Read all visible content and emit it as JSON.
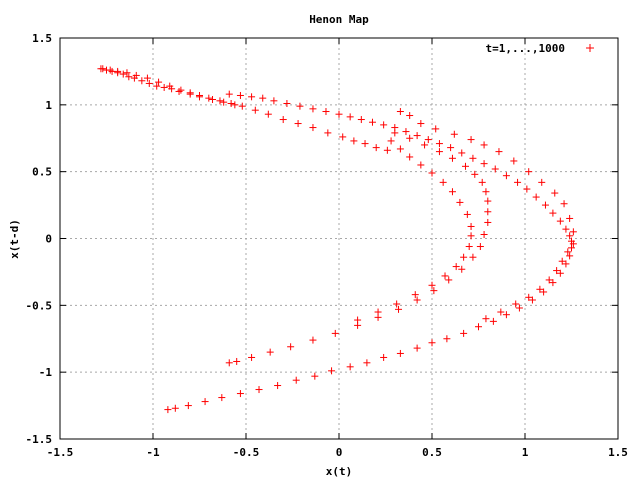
{
  "chart_data": {
    "type": "scatter",
    "title": "Henon Map",
    "xlabel": "x(t)",
    "ylabel": "x(t-d)",
    "xlim": [
      -1.5,
      1.5
    ],
    "ylim": [
      -1.5,
      1.5
    ],
    "xticks": [
      "-1.5",
      "-1",
      "-0.5",
      "0",
      "0.5",
      "1",
      "1.5"
    ],
    "yticks": [
      "-1.5",
      "-1",
      "-0.5",
      "0",
      "0.5",
      "1",
      "1.5"
    ],
    "grid": true,
    "legend_position": "top-right",
    "series": [
      {
        "name": "t=1,...,1000",
        "marker": "+",
        "color": "#ff0000",
        "points": [
          [
            -1.28,
            1.27
          ],
          [
            -1.25,
            1.26
          ],
          [
            -1.22,
            1.25
          ],
          [
            -1.19,
            1.24
          ],
          [
            -1.16,
            1.23
          ],
          [
            -1.13,
            1.21
          ],
          [
            -1.1,
            1.2
          ],
          [
            -1.06,
            1.18
          ],
          [
            -1.02,
            1.16
          ],
          [
            -0.98,
            1.14
          ],
          [
            -0.94,
            1.13
          ],
          [
            -0.9,
            1.12
          ],
          [
            -0.86,
            1.1
          ],
          [
            -0.8,
            1.08
          ],
          [
            -0.75,
            1.06
          ],
          [
            -0.7,
            1.05
          ],
          [
            -0.64,
            1.03
          ],
          [
            -0.58,
            1.01
          ],
          [
            -0.52,
            0.99
          ],
          [
            -0.45,
            0.96
          ],
          [
            -0.38,
            0.93
          ],
          [
            -0.3,
            0.89
          ],
          [
            -0.22,
            0.86
          ],
          [
            -0.14,
            0.83
          ],
          [
            -0.06,
            0.79
          ],
          [
            0.02,
            0.76
          ],
          [
            0.08,
            0.73
          ],
          [
            0.14,
            0.71
          ],
          [
            0.2,
            0.68
          ],
          [
            0.26,
            0.66
          ],
          [
            -1.27,
            1.27
          ],
          [
            -1.23,
            1.26
          ],
          [
            -1.19,
            1.25
          ],
          [
            -1.14,
            1.24
          ],
          [
            -1.09,
            1.22
          ],
          [
            -1.03,
            1.2
          ],
          [
            -0.97,
            1.17
          ],
          [
            -0.91,
            1.14
          ],
          [
            -0.85,
            1.11
          ],
          [
            -0.8,
            1.09
          ],
          [
            -0.75,
            1.07
          ],
          [
            -0.68,
            1.04
          ],
          [
            -0.62,
            1.02
          ],
          [
            -0.56,
            1.0
          ],
          [
            -0.59,
            1.08
          ],
          [
            -0.53,
            1.07
          ],
          [
            -0.47,
            1.06
          ],
          [
            -0.41,
            1.05
          ],
          [
            -0.35,
            1.03
          ],
          [
            -0.28,
            1.01
          ],
          [
            -0.21,
            0.99
          ],
          [
            -0.14,
            0.97
          ],
          [
            -0.07,
            0.95
          ],
          [
            0.0,
            0.93
          ],
          [
            0.06,
            0.91
          ],
          [
            0.12,
            0.89
          ],
          [
            0.18,
            0.87
          ],
          [
            0.24,
            0.85
          ],
          [
            0.3,
            0.83
          ],
          [
            0.36,
            0.8
          ],
          [
            0.42,
            0.77
          ],
          [
            0.48,
            0.74
          ],
          [
            0.54,
            0.71
          ],
          [
            0.6,
            0.68
          ],
          [
            0.66,
            0.64
          ],
          [
            0.72,
            0.6
          ],
          [
            0.78,
            0.56
          ],
          [
            0.84,
            0.52
          ],
          [
            0.9,
            0.47
          ],
          [
            0.96,
            0.42
          ],
          [
            1.01,
            0.37
          ],
          [
            1.06,
            0.31
          ],
          [
            1.11,
            0.25
          ],
          [
            1.15,
            0.19
          ],
          [
            1.19,
            0.13
          ],
          [
            1.22,
            0.07
          ],
          [
            1.24,
            0.02
          ],
          [
            1.25,
            -0.02
          ],
          [
            1.25,
            -0.07
          ],
          [
            1.24,
            -0.13
          ],
          [
            1.22,
            -0.19
          ],
          [
            1.19,
            -0.26
          ],
          [
            1.15,
            -0.33
          ],
          [
            1.1,
            -0.4
          ],
          [
            1.04,
            -0.46
          ],
          [
            0.97,
            -0.52
          ],
          [
            0.9,
            -0.57
          ],
          [
            0.83,
            -0.62
          ],
          [
            0.75,
            -0.66
          ],
          [
            0.67,
            -0.71
          ],
          [
            0.58,
            -0.75
          ],
          [
            0.5,
            -0.78
          ],
          [
            0.42,
            -0.82
          ],
          [
            0.33,
            -0.86
          ],
          [
            0.24,
            -0.89
          ],
          [
            0.15,
            -0.93
          ],
          [
            0.06,
            -0.96
          ],
          [
            -0.04,
            -0.99
          ],
          [
            -0.13,
            -1.03
          ],
          [
            -0.23,
            -1.06
          ],
          [
            -0.33,
            -1.1
          ],
          [
            -0.43,
            -1.13
          ],
          [
            -0.53,
            -1.16
          ],
          [
            -0.63,
            -1.19
          ],
          [
            -0.72,
            -1.22
          ],
          [
            -0.81,
            -1.25
          ],
          [
            -0.88,
            -1.27
          ],
          [
            -0.92,
            -1.28
          ],
          [
            0.3,
            0.79
          ],
          [
            0.38,
            0.75
          ],
          [
            0.46,
            0.7
          ],
          [
            0.54,
            0.65
          ],
          [
            0.61,
            0.6
          ],
          [
            0.68,
            0.54
          ],
          [
            0.73,
            0.48
          ],
          [
            0.77,
            0.42
          ],
          [
            0.79,
            0.35
          ],
          [
            0.8,
            0.28
          ],
          [
            0.8,
            0.2
          ],
          [
            0.8,
            0.12
          ],
          [
            0.78,
            0.03
          ],
          [
            0.76,
            -0.06
          ],
          [
            0.72,
            -0.14
          ],
          [
            0.66,
            -0.23
          ],
          [
            0.59,
            -0.31
          ],
          [
            0.51,
            -0.39
          ],
          [
            0.42,
            -0.46
          ],
          [
            0.32,
            -0.53
          ],
          [
            0.21,
            -0.59
          ],
          [
            0.1,
            -0.65
          ],
          [
            -0.02,
            -0.71
          ],
          [
            -0.14,
            -0.76
          ],
          [
            -0.26,
            -0.81
          ],
          [
            -0.37,
            -0.85
          ],
          [
            -0.47,
            -0.89
          ],
          [
            -0.55,
            -0.92
          ],
          [
            -0.59,
            -0.93
          ],
          [
            0.28,
            0.73
          ],
          [
            0.33,
            0.67
          ],
          [
            0.38,
            0.61
          ],
          [
            0.44,
            0.55
          ],
          [
            0.5,
            0.49
          ],
          [
            0.56,
            0.42
          ],
          [
            0.61,
            0.35
          ],
          [
            0.65,
            0.27
          ],
          [
            0.69,
            0.18
          ],
          [
            0.71,
            0.09
          ],
          [
            0.71,
            0.02
          ],
          [
            0.7,
            -0.06
          ],
          [
            0.67,
            -0.14
          ],
          [
            0.63,
            -0.21
          ],
          [
            0.57,
            -0.28
          ],
          [
            0.5,
            -0.35
          ],
          [
            0.41,
            -0.42
          ],
          [
            0.31,
            -0.49
          ],
          [
            0.21,
            -0.55
          ],
          [
            0.1,
            -0.61
          ],
          [
            0.33,
            0.95
          ],
          [
            0.38,
            0.92
          ],
          [
            0.44,
            0.86
          ],
          [
            0.52,
            0.82
          ],
          [
            0.62,
            0.78
          ],
          [
            0.71,
            0.74
          ],
          [
            0.78,
            0.7
          ],
          [
            0.86,
            0.65
          ],
          [
            0.94,
            0.58
          ],
          [
            1.02,
            0.5
          ],
          [
            1.09,
            0.42
          ],
          [
            1.16,
            0.34
          ],
          [
            1.21,
            0.26
          ],
          [
            1.24,
            0.15
          ],
          [
            1.26,
            0.05
          ],
          [
            1.26,
            -0.04
          ],
          [
            1.23,
            -0.1
          ],
          [
            1.2,
            -0.17
          ],
          [
            1.17,
            -0.24
          ],
          [
            1.13,
            -0.31
          ],
          [
            1.08,
            -0.38
          ],
          [
            1.02,
            -0.44
          ],
          [
            0.95,
            -0.49
          ],
          [
            0.87,
            -0.55
          ],
          [
            0.79,
            -0.6
          ]
        ]
      }
    ]
  }
}
